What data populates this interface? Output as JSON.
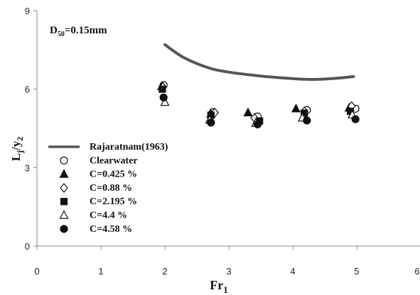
{
  "chart_data": {
    "type": "scatter",
    "xlabel": "Fr",
    "xlabel_sub": "1",
    "ylabel": "L",
    "ylabel_sub1": "j",
    "ylabel_mid": "/y",
    "ylabel_sub2": "2",
    "annotation": "D",
    "annotation_sub": "50",
    "annotation_rest": "=0.15mm",
    "xlim": [
      0,
      6
    ],
    "ylim": [
      0,
      9
    ],
    "x_ticks": [
      "0",
      "1",
      "2",
      "3",
      "4",
      "5",
      "6"
    ],
    "y_ticks": [
      "0",
      "3",
      "6",
      "9"
    ],
    "grid": false,
    "legend_position": "bottom-left",
    "line_series": {
      "name": "Rajaratnam(1963)",
      "color": "#555555",
      "points": [
        [
          2.0,
          7.7
        ],
        [
          2.3,
          7.2
        ],
        [
          2.7,
          6.8
        ],
        [
          3.0,
          6.65
        ],
        [
          3.5,
          6.5
        ],
        [
          4.0,
          6.4
        ],
        [
          4.3,
          6.37
        ],
        [
          4.6,
          6.4
        ],
        [
          4.95,
          6.48
        ]
      ]
    },
    "series": [
      {
        "name": "Clearwater",
        "marker": "circle-open",
        "points": [
          [
            1.98,
            6.15
          ],
          [
            2.75,
            5.12
          ],
          [
            3.45,
            4.95
          ],
          [
            4.22,
            5.2
          ],
          [
            4.98,
            5.25
          ]
        ]
      },
      {
        "name": "C=0.425 %",
        "marker": "triangle-filled",
        "points": [
          [
            1.95,
            6.1
          ],
          [
            2.72,
            5.05
          ],
          [
            3.3,
            5.1
          ],
          [
            4.05,
            5.25
          ],
          [
            4.88,
            5.28
          ]
        ]
      },
      {
        "name": "C=0.88 %",
        "marker": "diamond-open",
        "points": [
          [
            1.97,
            6.08
          ],
          [
            2.78,
            5.1
          ],
          [
            3.4,
            4.9
          ],
          [
            4.18,
            5.15
          ],
          [
            4.92,
            5.35
          ]
        ]
      },
      {
        "name": "C=2.195 %",
        "marker": "square-filled",
        "points": [
          [
            1.96,
            6.0
          ],
          [
            2.72,
            5.0
          ],
          [
            3.48,
            4.78
          ],
          [
            4.18,
            5.08
          ],
          [
            4.9,
            5.15
          ]
        ]
      },
      {
        "name": "C=4.4 %",
        "marker": "triangle-open",
        "points": [
          [
            2.0,
            5.5
          ],
          [
            2.7,
            4.82
          ],
          [
            3.42,
            4.7
          ],
          [
            4.15,
            4.9
          ],
          [
            4.93,
            5.02
          ]
        ]
      },
      {
        "name": "C=4.58 %",
        "marker": "circle-filled",
        "points": [
          [
            1.98,
            5.68
          ],
          [
            2.72,
            4.72
          ],
          [
            3.45,
            4.65
          ],
          [
            4.22,
            4.8
          ],
          [
            4.98,
            4.85
          ]
        ]
      }
    ]
  }
}
